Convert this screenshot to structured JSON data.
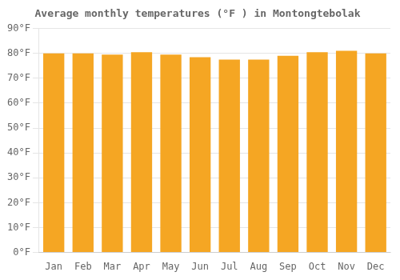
{
  "chart_data": {
    "type": "bar",
    "title": "Average monthly temperatures (°F ) in Montongtebolak",
    "categories": [
      "Jan",
      "Feb",
      "Mar",
      "Apr",
      "May",
      "Jun",
      "Jul",
      "Aug",
      "Sep",
      "Oct",
      "Nov",
      "Dec"
    ],
    "values": [
      80.0,
      80.0,
      79.5,
      80.5,
      79.5,
      78.5,
      77.5,
      77.5,
      79.0,
      80.5,
      81.0,
      80.0
    ],
    "color": "#F5A623",
    "ylim": [
      0,
      90
    ],
    "yticks": [
      {
        "value": 0,
        "label": "0°F"
      },
      {
        "value": 10,
        "label": "10°F"
      },
      {
        "value": 20,
        "label": "20°F"
      },
      {
        "value": 30,
        "label": "30°F"
      },
      {
        "value": 40,
        "label": "40°F"
      },
      {
        "value": 50,
        "label": "50°F"
      },
      {
        "value": 60,
        "label": "60°F"
      },
      {
        "value": 70,
        "label": "70°F"
      },
      {
        "value": 80,
        "label": "80°F"
      },
      {
        "value": 90,
        "label": "90°F"
      }
    ],
    "grid": true
  }
}
